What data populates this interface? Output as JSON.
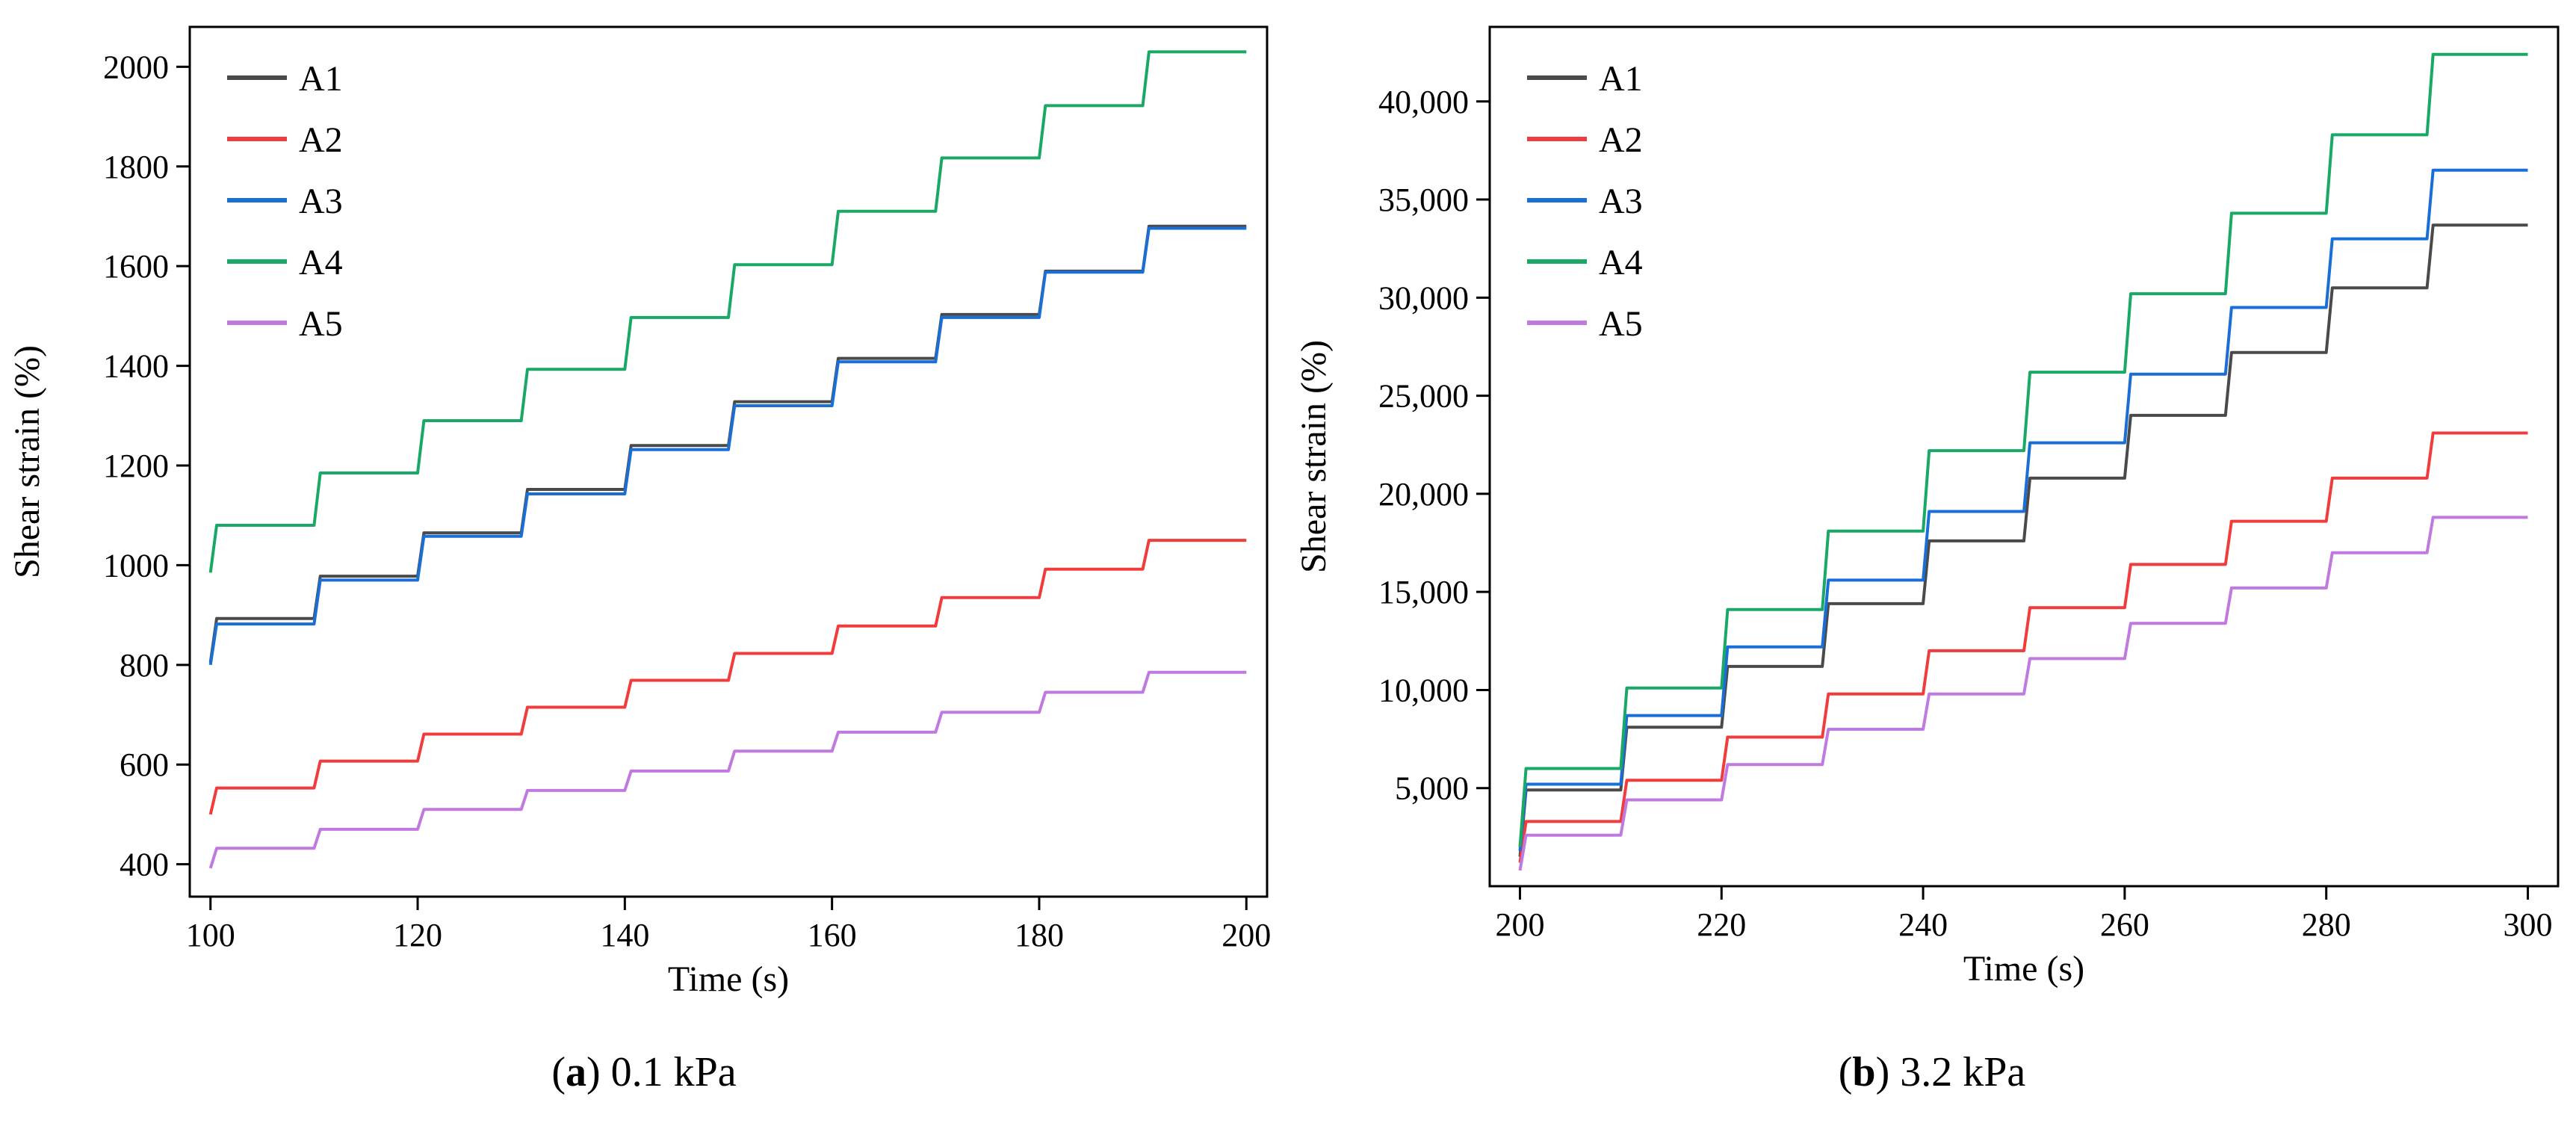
{
  "chart_data": [
    {
      "id": "a",
      "type": "line",
      "caption_letter": "a",
      "caption_text": "0.1 kPa",
      "xlabel": "Time (s)",
      "ylabel": "Shear strain (%)",
      "xlim": [
        98,
        202
      ],
      "ylim": [
        335,
        2080
      ],
      "xticks": [
        100,
        120,
        140,
        160,
        180,
        200
      ],
      "xtick_labels": [
        "100",
        "120",
        "140",
        "160",
        "180",
        "200"
      ],
      "yticks": [
        400,
        600,
        800,
        1000,
        1200,
        1400,
        1600,
        1800,
        2000
      ],
      "ytick_labels": [
        "400",
        "600",
        "800",
        "1000",
        "1200",
        "1400",
        "1600",
        "1800",
        "2000"
      ],
      "legend_position": "top-left",
      "x_start": 100,
      "x_end": 200,
      "step_interval": 10,
      "series": [
        {
          "name": "A1",
          "color": "#4a4a4a",
          "start": 805,
          "levels": [
            893,
            978,
            1065,
            1152,
            1240,
            1328,
            1415,
            1503,
            1590,
            1680
          ]
        },
        {
          "name": "A2",
          "color": "#f03c3c",
          "start": 500,
          "levels": [
            553,
            607,
            661,
            715,
            769,
            823,
            878,
            935,
            992,
            1050
          ]
        },
        {
          "name": "A3",
          "color": "#1a6fd6",
          "start": 800,
          "levels": [
            882,
            970,
            1058,
            1143,
            1232,
            1320,
            1408,
            1497,
            1588,
            1676
          ]
        },
        {
          "name": "A4",
          "color": "#1aa866",
          "start": 985,
          "levels": [
            1080,
            1185,
            1290,
            1393,
            1497,
            1603,
            1710,
            1817,
            1922,
            2030
          ]
        },
        {
          "name": "A5",
          "color": "#c079e0",
          "start": 392,
          "levels": [
            432,
            470,
            510,
            548,
            587,
            627,
            665,
            705,
            745,
            785
          ]
        }
      ]
    },
    {
      "id": "b",
      "type": "line",
      "caption_letter": "b",
      "caption_text": "3.2 kPa",
      "xlabel": "Time (s)",
      "ylabel": "Shear strain (%)",
      "xlim": [
        197,
        303
      ],
      "ylim": [
        0,
        43800
      ],
      "xticks": [
        200,
        220,
        240,
        260,
        280,
        300
      ],
      "xtick_labels": [
        "200",
        "220",
        "240",
        "260",
        "280",
        "300"
      ],
      "yticks": [
        5000,
        10000,
        15000,
        20000,
        25000,
        30000,
        35000,
        40000
      ],
      "ytick_labels": [
        "5,000",
        "10,000",
        "15,000",
        "20,000",
        "25,000",
        "30,000",
        "35,000",
        "40,000"
      ],
      "legend_position": "top-left",
      "x_start": 200,
      "x_end": 300,
      "step_interval": 10,
      "series": [
        {
          "name": "A1",
          "color": "#4a4a4a",
          "start": 1500,
          "levels": [
            4900,
            8100,
            11200,
            14400,
            17600,
            20800,
            24000,
            27200,
            30500,
            33700
          ]
        },
        {
          "name": "A2",
          "color": "#f03c3c",
          "start": 1200,
          "levels": [
            3300,
            5400,
            7600,
            9800,
            12000,
            14200,
            16400,
            18600,
            20800,
            23100
          ]
        },
        {
          "name": "A3",
          "color": "#1a6fd6",
          "start": 1800,
          "levels": [
            5200,
            8700,
            12200,
            15600,
            19100,
            22600,
            26100,
            29500,
            33000,
            36500
          ]
        },
        {
          "name": "A4",
          "color": "#1aa866",
          "start": 2000,
          "levels": [
            6000,
            10100,
            14100,
            18100,
            22200,
            26200,
            30200,
            34300,
            38300,
            42400
          ]
        },
        {
          "name": "A5",
          "color": "#c079e0",
          "start": 800,
          "levels": [
            2600,
            4400,
            6200,
            8000,
            9800,
            11600,
            13400,
            15200,
            17000,
            18800
          ]
        }
      ]
    }
  ]
}
